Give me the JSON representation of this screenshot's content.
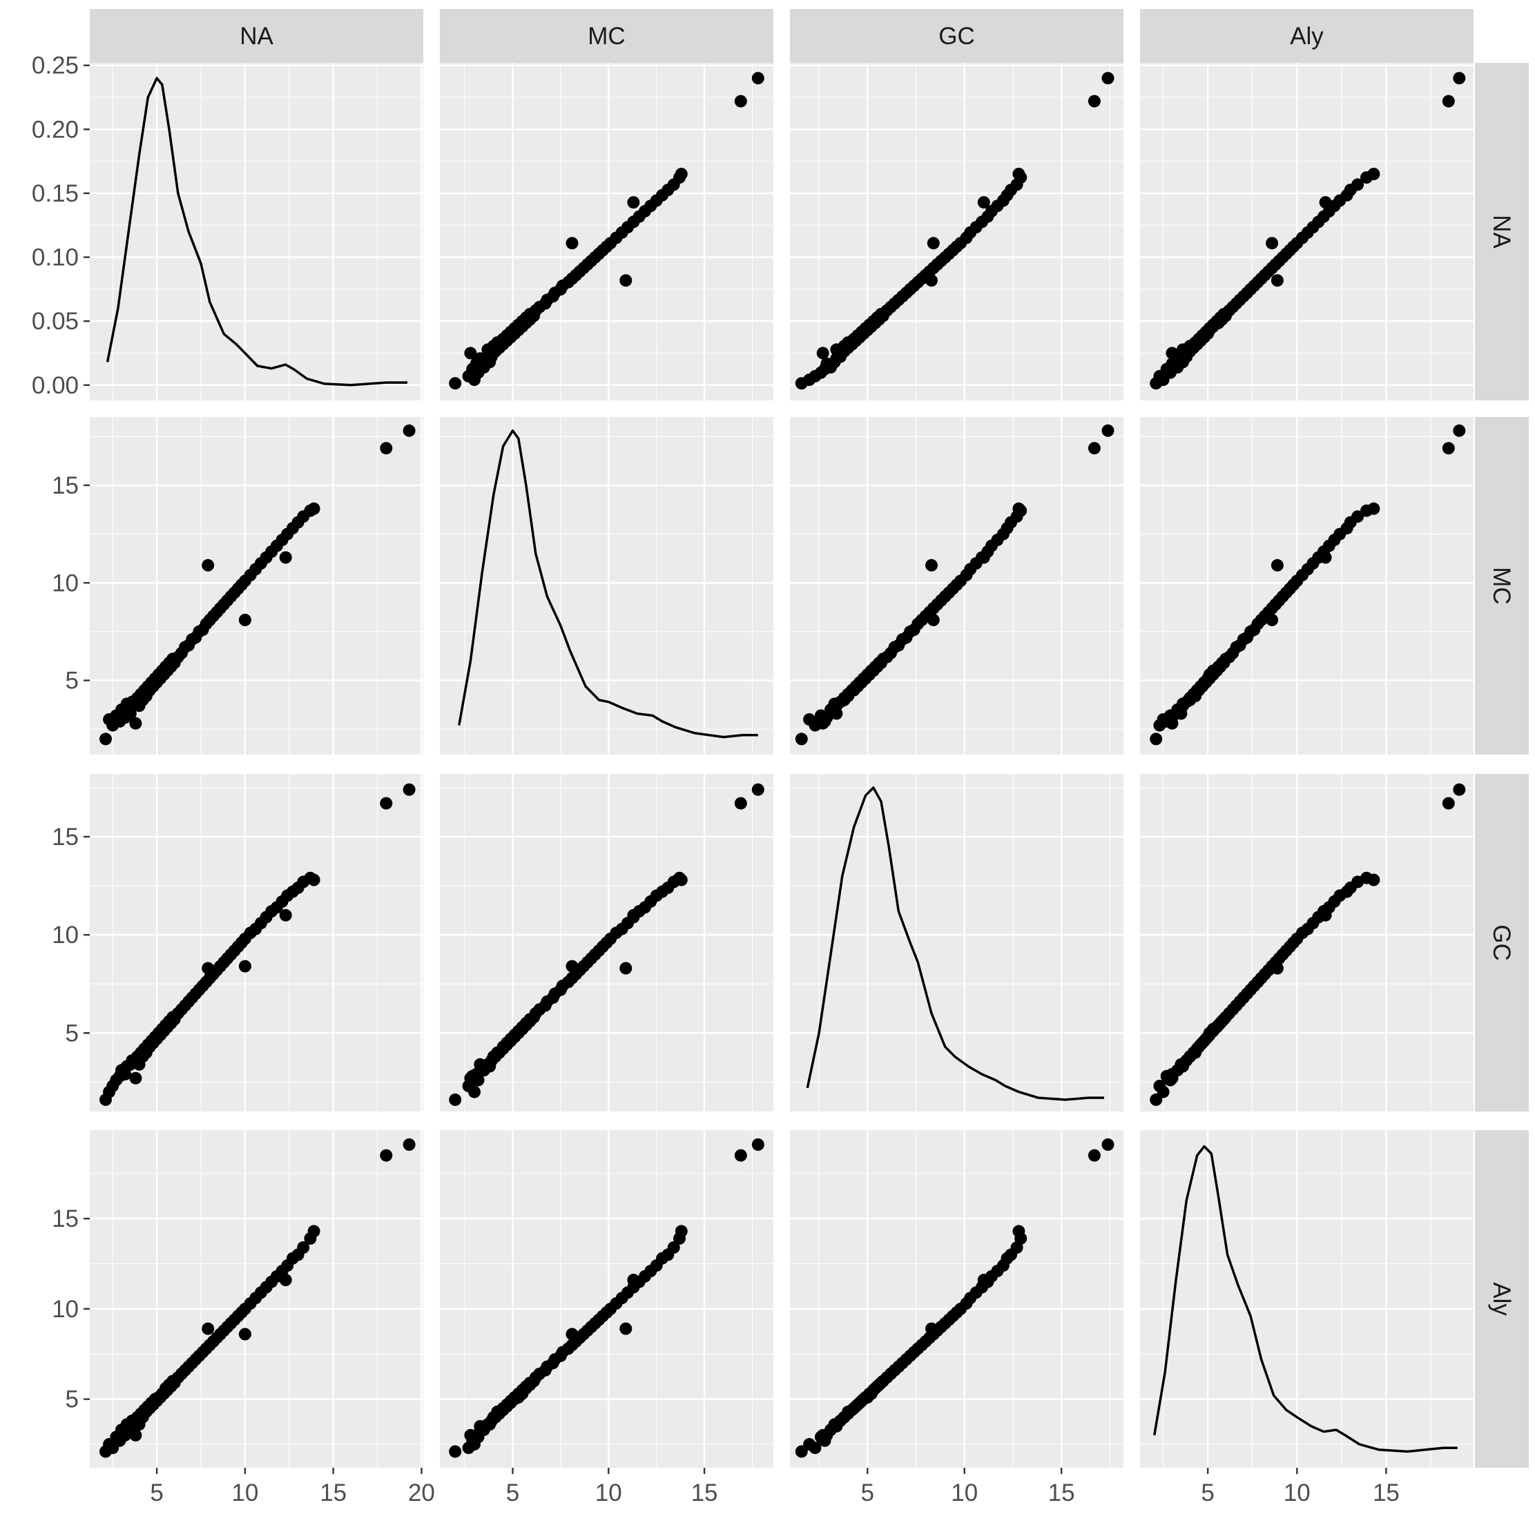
{
  "chart_data": {
    "type": "scatter",
    "title": "",
    "variables": [
      "NA",
      "MC",
      "GC",
      "Aly"
    ],
    "layout": "scatterplot-matrix",
    "diagonal": "density",
    "off_diagonal": "scatter",
    "grid": true,
    "x_axes": [
      {
        "column": "NA",
        "range": [
          1.2,
          20.1
        ],
        "ticks": [
          5,
          10,
          15,
          20
        ],
        "tick_labels": [
          "5",
          "10",
          "15",
          "20"
        ]
      },
      {
        "column": "MC",
        "range": [
          1.2,
          18.6
        ],
        "ticks": [
          5,
          10,
          15
        ],
        "tick_labels": [
          "5",
          "10",
          "15"
        ]
      },
      {
        "column": "GC",
        "range": [
          1.0,
          18.2
        ],
        "ticks": [
          5,
          10,
          15
        ],
        "tick_labels": [
          "5",
          "10",
          "15"
        ]
      },
      {
        "column": "Aly",
        "range": [
          1.2,
          19.9
        ],
        "ticks": [
          5,
          10,
          15
        ],
        "tick_labels": [
          "5",
          "10",
          "15"
        ]
      }
    ],
    "y_axes": [
      {
        "row": "NA",
        "range": [
          -0.012,
          0.252
        ],
        "ticks": [
          0,
          0.05,
          0.1,
          0.15,
          0.2,
          0.25
        ],
        "tick_labels": [
          "0.00",
          "0.05",
          "0.10",
          "0.15",
          "0.20",
          "0.25"
        ]
      },
      {
        "row": "MC",
        "range": [
          1.2,
          18.5
        ],
        "ticks": [
          5,
          10,
          15
        ],
        "tick_labels": [
          "5",
          "10",
          "15"
        ]
      },
      {
        "row": "GC",
        "range": [
          1.0,
          18.2
        ],
        "ticks": [
          5,
          10,
          15
        ],
        "tick_labels": [
          "5",
          "10",
          "15"
        ]
      },
      {
        "row": "Aly",
        "range": [
          1.2,
          19.9
        ],
        "ticks": [
          5,
          10,
          15
        ],
        "tick_labels": [
          "5",
          "10",
          "15"
        ]
      }
    ],
    "density_curves": {
      "NA": {
        "x": [
          2.2,
          2.8,
          3.4,
          4.0,
          4.5,
          5.0,
          5.3,
          5.7,
          6.2,
          6.8,
          7.5,
          8.0,
          8.8,
          9.5,
          10.0,
          10.7,
          11.5,
          12.3,
          12.8,
          13.5,
          14.5,
          16.0,
          18.0,
          19.2
        ],
        "y": [
          0.018,
          0.06,
          0.12,
          0.18,
          0.225,
          0.24,
          0.235,
          0.2,
          0.15,
          0.12,
          0.095,
          0.065,
          0.04,
          0.032,
          0.025,
          0.015,
          0.013,
          0.016,
          0.012,
          0.005,
          0.001,
          0.0,
          0.002,
          0.002
        ]
      },
      "MC": {
        "x": [
          2.2,
          2.8,
          3.4,
          4.0,
          4.5,
          5.0,
          5.3,
          5.7,
          6.2,
          6.8,
          7.5,
          8.0,
          8.8,
          9.5,
          10.0,
          10.7,
          11.5,
          12.3,
          12.8,
          13.5,
          14.5,
          16.0,
          17.0,
          17.8
        ],
        "y": [
          2.7,
          6.0,
          10.5,
          14.5,
          17.0,
          17.8,
          17.4,
          15.0,
          11.5,
          9.3,
          7.8,
          6.5,
          4.7,
          4.0,
          3.9,
          3.6,
          3.3,
          3.2,
          2.9,
          2.6,
          2.3,
          2.1,
          2.2,
          2.2
        ]
      },
      "GC": {
        "x": [
          1.9,
          2.5,
          3.1,
          3.7,
          4.3,
          4.9,
          5.3,
          5.7,
          6.1,
          6.6,
          7.2,
          7.6,
          8.3,
          9.0,
          9.5,
          10.2,
          10.9,
          11.6,
          12.1,
          12.8,
          13.8,
          15.2,
          16.4,
          17.2
        ],
        "y": [
          2.2,
          5.0,
          9.0,
          13.0,
          15.5,
          17.1,
          17.5,
          16.8,
          14.5,
          11.2,
          9.6,
          8.6,
          6.0,
          4.3,
          3.8,
          3.3,
          2.9,
          2.6,
          2.3,
          2.0,
          1.7,
          1.6,
          1.7,
          1.7
        ]
      },
      "Aly": {
        "x": [
          2.0,
          2.6,
          3.2,
          3.8,
          4.4,
          4.8,
          5.2,
          5.6,
          6.1,
          6.7,
          7.4,
          8.0,
          8.7,
          9.4,
          10.0,
          10.8,
          11.5,
          12.2,
          12.7,
          13.5,
          14.6,
          16.2,
          18.2,
          19.0
        ],
        "y": [
          3.0,
          6.5,
          11.5,
          16.0,
          18.5,
          19.0,
          18.6,
          16.2,
          13.0,
          11.3,
          9.6,
          7.2,
          5.2,
          4.4,
          4.0,
          3.5,
          3.2,
          3.3,
          3.0,
          2.5,
          2.2,
          2.1,
          2.3,
          2.3
        ]
      }
    },
    "series": [
      {
        "variables": [
          "NA",
          "MC",
          "GC",
          "Aly"
        ],
        "values": [
          [
            2.1,
            2.0,
            1.6,
            2.1
          ],
          [
            2.3,
            3.0,
            2.0,
            2.5
          ],
          [
            2.5,
            2.7,
            2.3,
            2.3
          ],
          [
            2.7,
            3.2,
            2.6,
            2.9
          ],
          [
            2.9,
            2.9,
            2.8,
            2.7
          ],
          [
            3.0,
            3.5,
            3.1,
            3.3
          ],
          [
            3.2,
            3.1,
            2.9,
            3.0
          ],
          [
            3.3,
            3.8,
            3.3,
            3.6
          ],
          [
            3.5,
            3.3,
            3.4,
            3.5
          ],
          [
            3.6,
            3.9,
            3.6,
            3.8
          ],
          [
            3.8,
            2.8,
            2.7,
            3.0
          ],
          [
            3.9,
            4.1,
            3.8,
            4.0
          ],
          [
            4.0,
            3.7,
            3.4,
            3.6
          ],
          [
            4.1,
            4.3,
            4.0,
            4.2
          ],
          [
            4.2,
            4.0,
            3.8,
            4.0
          ],
          [
            4.3,
            4.5,
            4.2,
            4.4
          ],
          [
            4.4,
            4.2,
            4.0,
            4.3
          ],
          [
            4.5,
            4.7,
            4.4,
            4.6
          ],
          [
            4.6,
            4.5,
            4.3,
            4.5
          ],
          [
            4.7,
            4.9,
            4.6,
            4.8
          ],
          [
            4.8,
            4.7,
            4.5,
            4.7
          ],
          [
            4.9,
            5.1,
            4.8,
            5.0
          ],
          [
            5.0,
            4.9,
            4.7,
            4.9
          ],
          [
            5.1,
            5.3,
            5.0,
            5.1
          ],
          [
            5.2,
            5.1,
            4.9,
            5.1
          ],
          [
            5.3,
            5.5,
            5.2,
            5.3
          ],
          [
            5.4,
            5.3,
            5.1,
            5.3
          ],
          [
            5.5,
            5.7,
            5.4,
            5.6
          ],
          [
            5.6,
            5.5,
            5.3,
            5.5
          ],
          [
            5.7,
            5.9,
            5.6,
            5.8
          ],
          [
            5.8,
            5.7,
            5.5,
            5.7
          ],
          [
            5.9,
            6.1,
            5.8,
            6.0
          ],
          [
            6.0,
            5.9,
            5.7,
            5.9
          ],
          [
            6.2,
            6.2,
            6.0,
            6.2
          ],
          [
            6.4,
            6.4,
            6.2,
            6.4
          ],
          [
            6.6,
            6.7,
            6.4,
            6.6
          ],
          [
            6.8,
            6.8,
            6.6,
            6.8
          ],
          [
            7.0,
            7.1,
            6.8,
            7.0
          ],
          [
            7.2,
            7.2,
            7.0,
            7.2
          ],
          [
            7.4,
            7.5,
            7.2,
            7.4
          ],
          [
            7.6,
            7.6,
            7.4,
            7.6
          ],
          [
            7.8,
            7.9,
            7.6,
            7.8
          ],
          [
            8.0,
            8.1,
            7.8,
            8.0
          ],
          [
            7.9,
            10.9,
            8.3,
            8.9
          ],
          [
            8.2,
            8.3,
            8.0,
            8.2
          ],
          [
            8.4,
            8.5,
            8.2,
            8.4
          ],
          [
            8.6,
            8.7,
            8.4,
            8.6
          ],
          [
            8.8,
            8.9,
            8.6,
            8.8
          ],
          [
            9.0,
            9.1,
            8.8,
            9.0
          ],
          [
            9.2,
            9.3,
            9.0,
            9.2
          ],
          [
            9.4,
            9.5,
            9.2,
            9.4
          ],
          [
            9.6,
            9.7,
            9.4,
            9.6
          ],
          [
            9.8,
            9.9,
            9.6,
            9.8
          ],
          [
            10.0,
            10.1,
            9.8,
            10.0
          ],
          [
            10.0,
            8.1,
            8.4,
            8.6
          ],
          [
            10.3,
            10.4,
            10.1,
            10.3
          ],
          [
            10.6,
            10.7,
            10.3,
            10.6
          ],
          [
            10.9,
            11.0,
            10.6,
            10.9
          ],
          [
            11.2,
            11.3,
            10.9,
            11.2
          ],
          [
            11.5,
            11.6,
            11.2,
            11.5
          ],
          [
            11.8,
            11.9,
            11.4,
            11.8
          ],
          [
            12.1,
            12.2,
            11.7,
            12.1
          ],
          [
            12.3,
            11.3,
            11.0,
            11.6
          ],
          [
            12.4,
            12.5,
            12.0,
            12.4
          ],
          [
            12.7,
            12.8,
            12.2,
            12.8
          ],
          [
            13.0,
            13.1,
            12.4,
            13.0
          ],
          [
            13.3,
            13.4,
            12.7,
            13.4
          ],
          [
            13.7,
            13.7,
            12.9,
            13.9
          ],
          [
            13.9,
            13.8,
            12.8,
            14.3
          ],
          [
            18.0,
            16.9,
            16.7,
            18.5
          ],
          [
            19.3,
            17.8,
            17.4,
            19.1
          ]
        ]
      }
    ]
  }
}
